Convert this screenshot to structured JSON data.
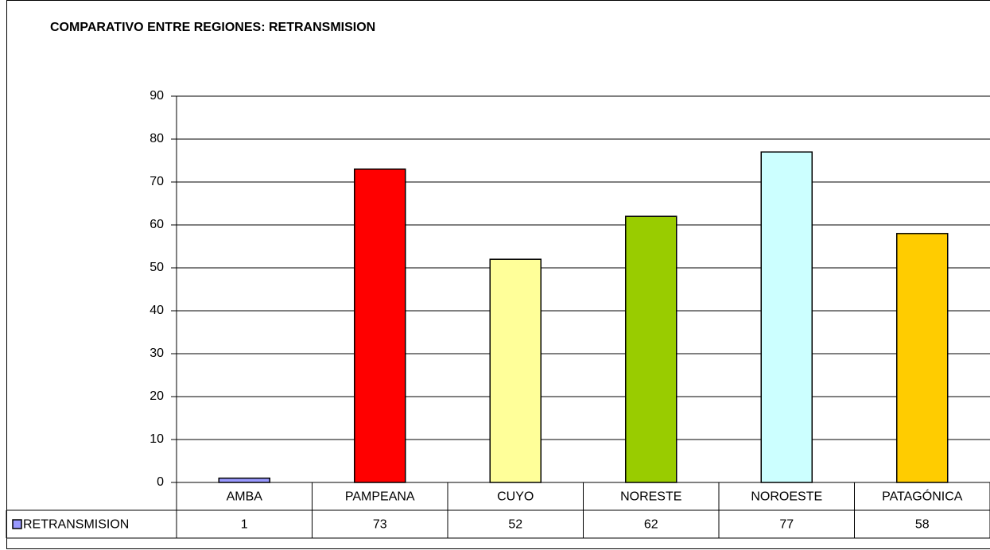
{
  "chart_data": {
    "type": "bar",
    "title": "COMPARATIVO ENTRE REGIONES: RETRANSMISION",
    "categories": [
      "AMBA",
      "PAMPEANA",
      "CUYO",
      "NORESTE",
      "NOROESTE",
      "PATAGÓNICA"
    ],
    "series": [
      {
        "name": "RETRANSMISION",
        "color": "#9999ff",
        "colors": [
          "#9999ff",
          "#ff0000",
          "#ffff99",
          "#99cc00",
          "#ccffff",
          "#ffcc00"
        ],
        "values": [
          1,
          73,
          52,
          62,
          77,
          58
        ]
      }
    ],
    "ylim": [
      0,
      90
    ],
    "yticks": [
      0,
      10,
      20,
      30,
      40,
      50,
      60,
      70,
      80,
      90
    ],
    "grid": true
  }
}
